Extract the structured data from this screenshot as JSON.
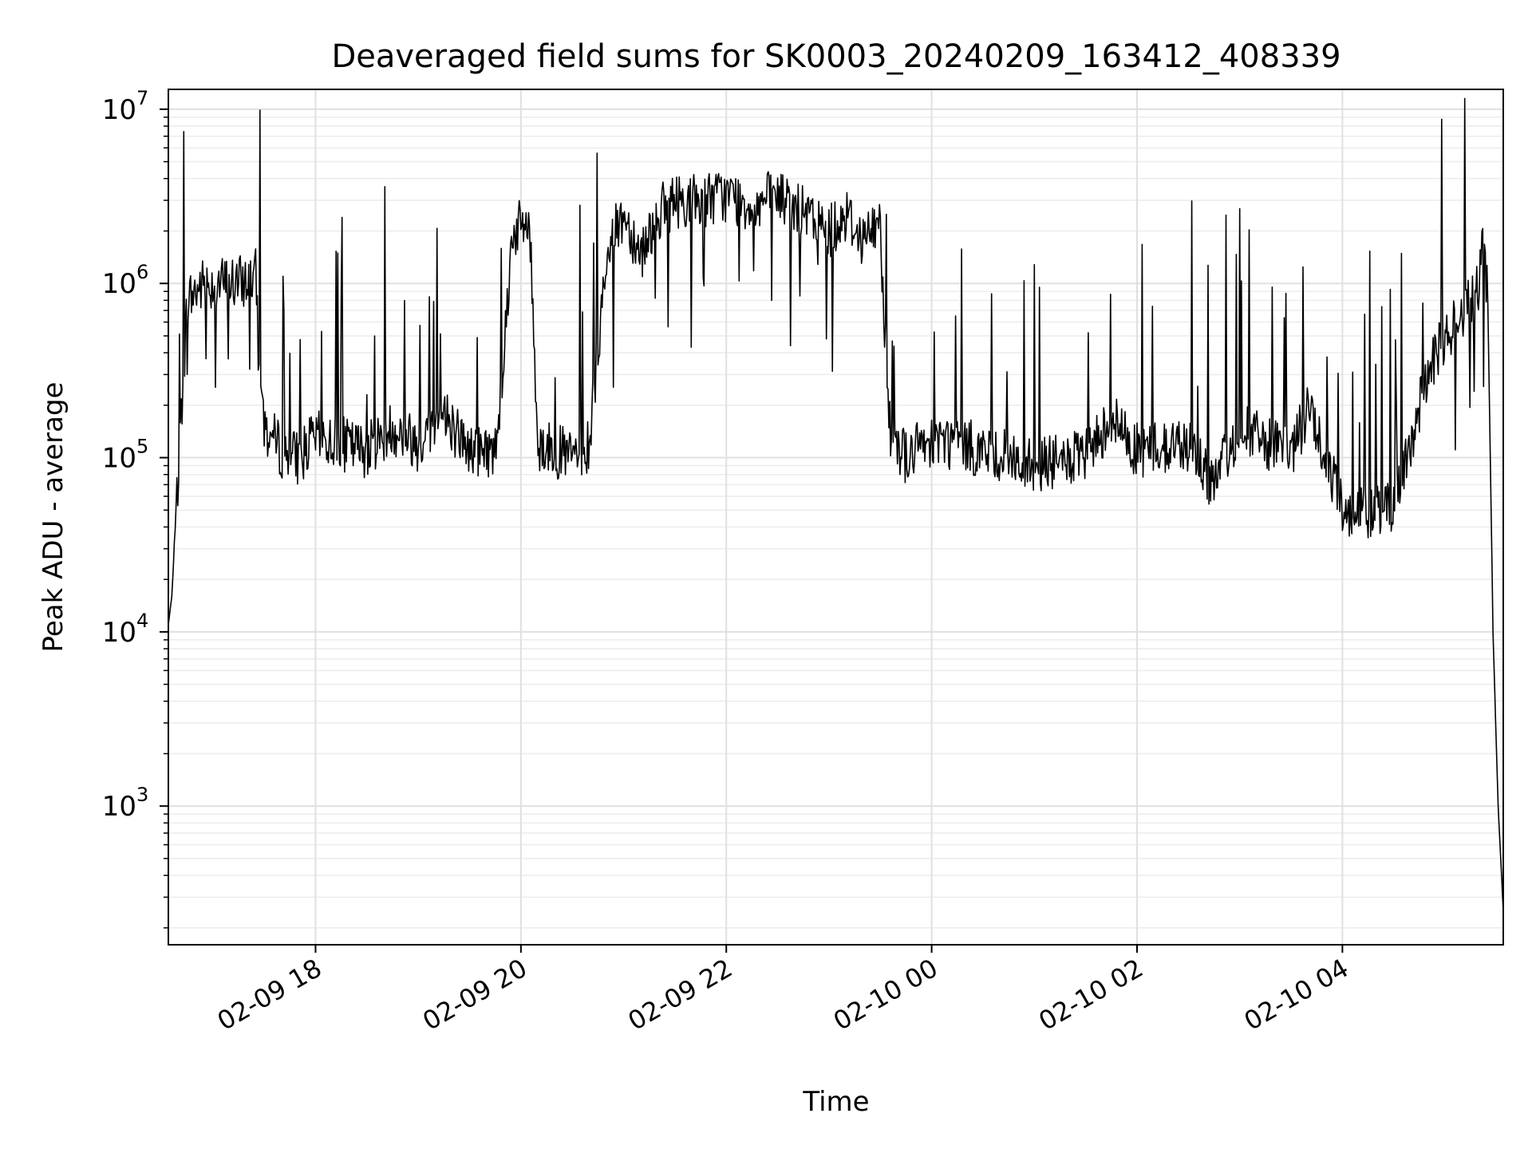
{
  "chart_data": {
    "type": "line",
    "title": "Deaveraged field sums for SK0003_20240209_163412_408339",
    "xlabel": "Time",
    "ylabel": "Peak ADU - average",
    "yscale": "log",
    "ylim": [
      160,
      13000000
    ],
    "xlim": [
      "02-09 16:34",
      "02-10 05:34"
    ],
    "grid": true,
    "x_ticks": [
      {
        "t": "02-09 18:00",
        "label": "02-09 18"
      },
      {
        "t": "02-09 20:00",
        "label": "02-09 20"
      },
      {
        "t": "02-09 22:00",
        "label": "02-09 22"
      },
      {
        "t": "02-10 00:00",
        "label": "02-10 00"
      },
      {
        "t": "02-10 02:00",
        "label": "02-10 02"
      },
      {
        "t": "02-10 04:00",
        "label": "02-10 04"
      }
    ],
    "y_ticks": [
      {
        "value": 1000,
        "base": "10",
        "exp": "3"
      },
      {
        "value": 10000,
        "base": "10",
        "exp": "4"
      },
      {
        "value": 100000,
        "base": "10",
        "exp": "5"
      },
      {
        "value": 1000000,
        "base": "10",
        "exp": "6"
      },
      {
        "value": 10000000,
        "base": "10",
        "exp": "7"
      }
    ],
    "series_color": "#000000",
    "series": [
      {
        "x": [
          "02-09 16:34",
          "02-09 16:36",
          "02-09 16:40",
          "02-09 16:45",
          "02-09 16:50",
          "02-09 16:55",
          "02-09 17:05",
          "02-09 17:15",
          "02-09 17:25",
          "02-09 17:30",
          "02-09 17:40",
          "02-09 17:50",
          "02-09 18:00",
          "02-09 18:15",
          "02-09 18:30",
          "02-09 18:45",
          "02-09 19:00",
          "02-09 19:15",
          "02-09 19:30",
          "02-09 19:45",
          "02-09 19:50",
          "02-09 19:55",
          "02-09 20:05",
          "02-09 20:10",
          "02-09 20:30",
          "02-09 20:40",
          "02-09 20:50",
          "02-09 21:00",
          "02-09 21:10",
          "02-09 21:20",
          "02-09 21:30",
          "02-09 21:45",
          "02-09 22:00",
          "02-09 22:15",
          "02-09 22:30",
          "02-09 22:45",
          "02-09 23:00",
          "02-09 23:10",
          "02-09 23:20",
          "02-09 23:30",
          "02-09 23:35",
          "02-09 23:45",
          "02-10 00:00",
          "02-10 00:30",
          "02-10 01:00",
          "02-10 01:30",
          "02-10 01:45",
          "02-10 02:00",
          "02-10 02:30",
          "02-10 02:45",
          "02-10 03:00",
          "02-10 03:30",
          "02-10 03:40",
          "02-10 03:50",
          "02-10 04:00",
          "02-10 04:30",
          "02-10 04:50",
          "02-10 05:00",
          "02-10 05:10",
          "02-10 05:20",
          "02-10 05:22",
          "02-10 05:25",
          "02-10 05:28",
          "02-10 05:31",
          "02-10 05:34"
        ],
        "y": [
          11000,
          16000,
          90000,
          800000,
          900000,
          1000000,
          1000000,
          1000000,
          1100000,
          150000,
          110000,
          100000,
          130000,
          120000,
          110000,
          150000,
          120000,
          180000,
          110000,
          110000,
          400000,
          2000000,
          2200000,
          120000,
          100000,
          120000,
          1500000,
          2500000,
          1500000,
          2500000,
          3000000,
          3000000,
          3200000,
          2800000,
          3200000,
          2500000,
          2000000,
          2500000,
          1800000,
          2200000,
          150000,
          100000,
          130000,
          110000,
          90000,
          100000,
          170000,
          110000,
          120000,
          70000,
          150000,
          100000,
          200000,
          100000,
          50000,
          50000,
          300000,
          500000,
          700000,
          900000,
          2000000,
          800000,
          10000,
          1000,
          250
        ]
      }
    ]
  }
}
